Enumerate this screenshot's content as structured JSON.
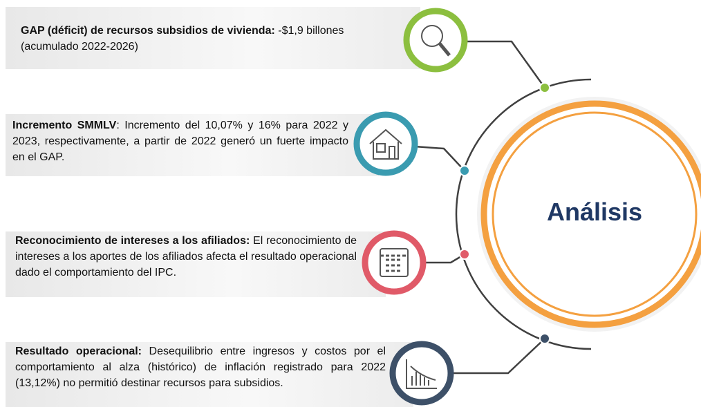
{
  "items": [
    {
      "lead": "GAP (déficit) de recursos subsidios de vivienda:",
      "text": " -$1,9 billones (acumulado 2022-2026)"
    },
    {
      "lead": "Incremento SMMLV",
      "text": ": Incremento del 10,07% y 16% para 2022 y 2023, respectivamente, a partir de 2022 generó un fuerte impacto en el GAP."
    },
    {
      "lead": "Reconocimiento de intereses a los afiliados:",
      "text": " El reconocimiento de intereses a los aportes de los afiliados afecta el resultado operacional dado el comportamiento del IPC."
    },
    {
      "lead": "Resultado operacional:",
      "text": " Desequilibrio entre ingresos y costos por el comportamiento al alza (histórico) de inflación registrado para 2022 (13,12%) no permitió destinar recursos para subsidios."
    }
  ],
  "center": "Análisis"
}
